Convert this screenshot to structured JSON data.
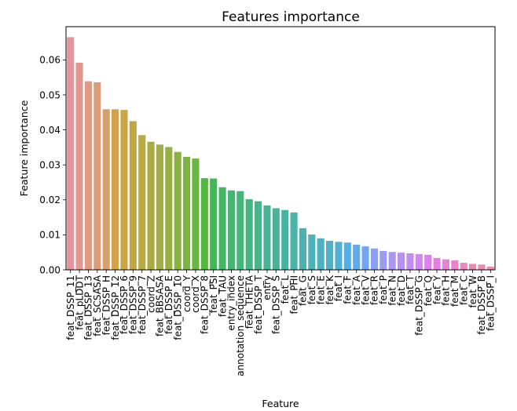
{
  "chart_data": {
    "type": "bar",
    "title": "Features importance",
    "xlabel": "Feature",
    "ylabel": "Feature importance",
    "ylim": [
      0,
      0.0695
    ],
    "yticks": [
      "0.00",
      "0.01",
      "0.02",
      "0.03",
      "0.04",
      "0.05",
      "0.06"
    ],
    "grid": false,
    "categories": [
      "feat_DSSP_11",
      "feat_pLDDT",
      "feat_DSSP_13",
      "feat_SCSASA",
      "feat_DSSP_H",
      "feat_DSSP_12",
      "feat_DSSP_6",
      "feat_DSSP_9",
      "feat_DSSP_7",
      "coord_Z",
      "feat_BBSASA",
      "feat_DSSP_E",
      "feat_DSSP_10",
      "coord_Y",
      "coord_X",
      "feat_DSSP_8",
      "feat_PSI",
      "feat_TAU",
      "entry_index",
      "annotation_sequence",
      "feat_THETA",
      "feat_DSSP_T",
      "entry",
      "feat_DSSP_S",
      "feat_L",
      "feat_PHI",
      "feat_G",
      "feat_S",
      "feat_E",
      "feat_K",
      "feat_I",
      "feat_F",
      "feat_A",
      "feat_V",
      "feat_R",
      "feat_P",
      "feat_N",
      "feat_D",
      "feat_T",
      "feat_DSSP_G",
      "feat_Q",
      "feat_Y",
      "feat_H",
      "feat_M",
      "feat_C",
      "feat_W",
      "feat_DSSP_B",
      "feat_DSSP_I"
    ],
    "values": [
      0.0665,
      0.0592,
      0.0539,
      0.0536,
      0.0459,
      0.0459,
      0.0457,
      0.0425,
      0.0385,
      0.0366,
      0.0358,
      0.0351,
      0.0337,
      0.0323,
      0.0318,
      0.0262,
      0.0261,
      0.0236,
      0.0227,
      0.0225,
      0.0202,
      0.0196,
      0.0184,
      0.0176,
      0.0171,
      0.0164,
      0.0119,
      0.0101,
      0.009,
      0.0083,
      0.008,
      0.0078,
      0.0072,
      0.0067,
      0.0061,
      0.0054,
      0.0051,
      0.0049,
      0.0047,
      0.0045,
      0.0043,
      0.0034,
      0.003,
      0.0027,
      0.002,
      0.0017,
      0.0015,
      0.0009
    ],
    "colors": [
      "#e8939b",
      "#e29791",
      "#df9a86",
      "#dc9c78",
      "#d99f66",
      "#d4a24d",
      "#caa546",
      "#bfa844",
      "#b5aa43",
      "#aaac43",
      "#a0ae43",
      "#96b043",
      "#8ab243",
      "#7cb442",
      "#6bb541",
      "#55b73f",
      "#40b853",
      "#42b664",
      "#44b671",
      "#45b67b",
      "#46b584",
      "#47b48c",
      "#48b494",
      "#48b39b",
      "#49b3a2",
      "#4ab2a9",
      "#4bb2b1",
      "#4cb1b8",
      "#4eb1c0",
      "#50b0c9",
      "#53afd3",
      "#57aee0",
      "#5eacec",
      "#72a6f1",
      "#8aa0f1",
      "#9b9bf1",
      "#aa96f1",
      "#b791f1",
      "#c48bf1",
      "#d286f1",
      "#de80ef",
      "#e480e5",
      "#e782d8",
      "#e984cb",
      "#ea86c0",
      "#eb89b5",
      "#ec8bab",
      "#ed8ea3"
    ]
  }
}
